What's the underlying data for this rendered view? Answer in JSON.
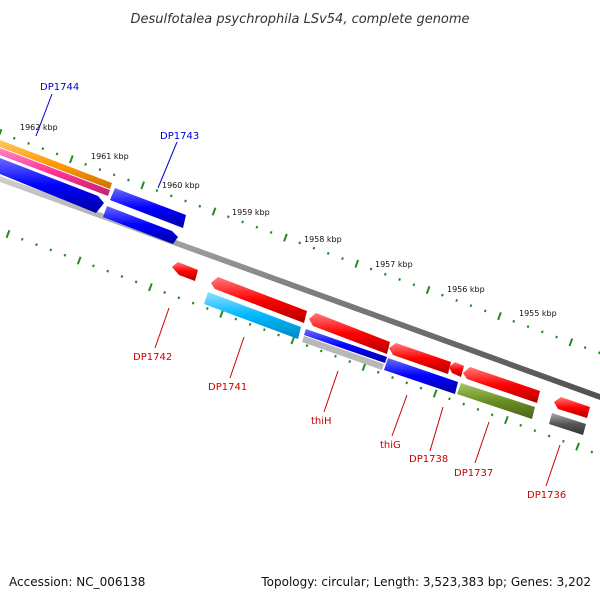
{
  "title": "Desulfotalea psychrophila LSv54, complete genome",
  "footer": {
    "accession": "Accession: NC_006138",
    "topology": "Topology: circular; Length: 3,523,383 bp; Genes: 3,202"
  },
  "ticks": [
    "1962 kbp",
    "1961 kbp",
    "1960 kbp",
    "1959 kbp",
    "1958 kbp",
    "1957 kbp",
    "1956 kbp",
    "1955 kbp"
  ],
  "genes_plus": [
    {
      "label": "DP1744",
      "color": "#0000cc"
    },
    {
      "label": "DP1743",
      "color": "#0000cc"
    }
  ],
  "genes_minus": [
    {
      "label": "DP1742",
      "color": "#cc0000"
    },
    {
      "label": "DP1741",
      "color": "#cc0000"
    },
    {
      "label": "thiH",
      "color": "#cc0000"
    },
    {
      "label": "thiG",
      "color": "#cc0000"
    },
    {
      "label": "DP1738",
      "color": "#cc0000"
    },
    {
      "label": "DP1737",
      "color": "#cc0000"
    },
    {
      "label": "DP1736",
      "color": "#cc0000"
    }
  ],
  "colors": {
    "forward_cds": "#0000ff",
    "reverse_cds": "#ff0000",
    "orange_feature": "#ff9900",
    "pink_feature": "#ff3399",
    "cyan_feature": "#00b7ff",
    "olive_feature": "#6b8e23",
    "gray_feature": "#555555",
    "backbone": "#808080",
    "tick_mark": "#228b22"
  }
}
